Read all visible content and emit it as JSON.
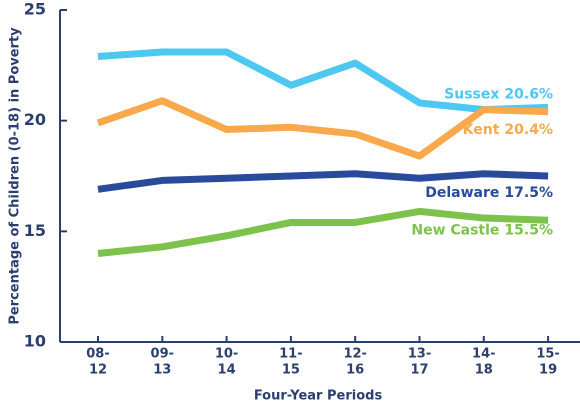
{
  "chart_data": {
    "type": "line",
    "x_label": "Four-Year Periods",
    "y_label": "Percentage of Children (0-18) in Poverty",
    "categories": [
      [
        "08-",
        "12"
      ],
      [
        "09-",
        "13"
      ],
      [
        "10-",
        "14"
      ],
      [
        "11-",
        "15"
      ],
      [
        "12-",
        "16"
      ],
      [
        "13-",
        "17"
      ],
      [
        "14-",
        "18"
      ],
      [
        "15-",
        "19"
      ]
    ],
    "ylim": [
      10,
      25
    ],
    "yticks": [
      10,
      15,
      20,
      25
    ],
    "grid": false,
    "series": [
      {
        "name": "Sussex",
        "color": "#4dc8f0",
        "values": [
          22.9,
          23.1,
          23.1,
          21.6,
          22.6,
          20.8,
          20.5,
          20.6
        ],
        "value_labels": [
          null,
          null,
          null,
          null,
          null,
          null,
          null,
          "20.6%"
        ]
      },
      {
        "name": "Kent",
        "color": "#f9a94b",
        "values": [
          19.9,
          20.9,
          19.6,
          19.7,
          19.4,
          18.4,
          20.5,
          20.4
        ],
        "value_labels": [
          null,
          null,
          null,
          null,
          null,
          null,
          null,
          "20.4%"
        ]
      },
      {
        "name": "Delaware",
        "color": "#2a4a9b",
        "values": [
          16.9,
          17.3,
          17.4,
          17.5,
          17.6,
          17.4,
          17.6,
          17.5
        ],
        "value_labels": [
          null,
          null,
          null,
          null,
          null,
          null,
          null,
          "17.5%"
        ]
      },
      {
        "name": "New Castle",
        "color": "#7dc24b",
        "values": [
          14.0,
          14.3,
          14.8,
          15.4,
          15.4,
          15.9,
          15.6,
          15.5
        ],
        "value_labels": [
          null,
          null,
          null,
          null,
          null,
          null,
          null,
          "15.5%"
        ]
      }
    ]
  }
}
